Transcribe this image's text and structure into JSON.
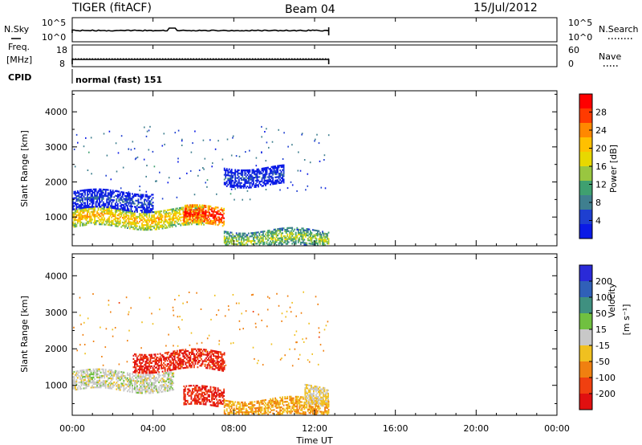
{
  "header": {
    "radar": "TIGER (fitACF)",
    "beam": "Beam 04",
    "date": "15/Jul/2012"
  },
  "top_panels": {
    "nsky_label": "N.Sky",
    "nsky_ticks_left": [
      "10^5",
      "10^0"
    ],
    "nsky_ticks_right": [
      "10^5",
      "10^0"
    ],
    "nsearch_label": "N.Search",
    "freq_label_line1": "Freq.",
    "freq_label_line2": "[MHz]",
    "freq_ticks": [
      "18",
      "8"
    ],
    "nave_ticks": [
      "60",
      "0"
    ],
    "nave_label": "Nave",
    "cpid_label": "CPID",
    "cpid_value": "normal (fast) 151"
  },
  "axes": {
    "y_label": "Slant Range [km]",
    "y_ticks": [
      "4000",
      "3000",
      "2000",
      "1000"
    ],
    "x_ticks": [
      "00:00",
      "04:00",
      "08:00",
      "12:00",
      "16:00",
      "20:00",
      "00:00"
    ],
    "x_label": "Time UT"
  },
  "colorbars": {
    "power": {
      "label": "Power [dB]",
      "ticks": [
        "28",
        "24",
        "20",
        "16",
        "12",
        "8",
        "4"
      ],
      "colors": [
        "#ff0000",
        "#ff3a00",
        "#ff8800",
        "#ffc000",
        "#e8d800",
        "#99c640",
        "#3fa070",
        "#3f7f8f",
        "#1e3fd0",
        "#0a1ae6"
      ]
    },
    "velocity": {
      "label_line1": "Velocity",
      "label_line2": "[m s⁻¹]",
      "ticks": [
        "200",
        "100",
        "50",
        "15",
        "-15",
        "-50",
        "-100",
        "-200"
      ],
      "colors": [
        "#2a2ad8",
        "#3060b8",
        "#3f9080",
        "#70c040",
        "#c8c8c8",
        "#f0c020",
        "#f08010",
        "#f04010",
        "#e01010"
      ]
    }
  },
  "chart_data": [
    {
      "type": "heatmap",
      "name": "Power",
      "x_range_hours": [
        0,
        24
      ],
      "y_range_km": [
        180,
        4600
      ],
      "data_extent_hours": [
        0,
        12.7
      ],
      "colorbar_range_db": [
        0,
        32
      ],
      "features": [
        {
          "t_start": 0.0,
          "t_end": 6.5,
          "range_km": 1000,
          "power_db": 22
        },
        {
          "t_start": 5.5,
          "t_end": 7.5,
          "range_km": 1050,
          "power_db": 30
        },
        {
          "t_start": 7.5,
          "t_end": 12.7,
          "range_km": 400,
          "power_db": 16
        },
        {
          "t_start": 0.0,
          "t_end": 4.0,
          "range_km": 1500,
          "power_db": 6
        },
        {
          "t_start": 7.5,
          "t_end": 10.5,
          "range_km": 2200,
          "power_db": 6
        }
      ]
    },
    {
      "type": "heatmap",
      "name": "Velocity",
      "x_range_hours": [
        0,
        24
      ],
      "y_range_km": [
        180,
        4600
      ],
      "data_extent_hours": [
        0,
        12.7
      ],
      "colorbar_range_ms": [
        -250,
        250
      ],
      "features": [
        {
          "t_start": 0.0,
          "t_end": 5.0,
          "range_km": 1150,
          "velocity_ms": 0
        },
        {
          "t_start": 3.0,
          "t_end": 7.5,
          "range_km": 1700,
          "velocity_ms": -200
        },
        {
          "t_start": 5.5,
          "t_end": 7.5,
          "range_km": 700,
          "velocity_ms": -200
        },
        {
          "t_start": 7.5,
          "t_end": 12.7,
          "range_km": 400,
          "velocity_ms": -80
        },
        {
          "t_start": 11.5,
          "t_end": 12.7,
          "range_km": 750,
          "velocity_ms": -30
        }
      ]
    }
  ]
}
